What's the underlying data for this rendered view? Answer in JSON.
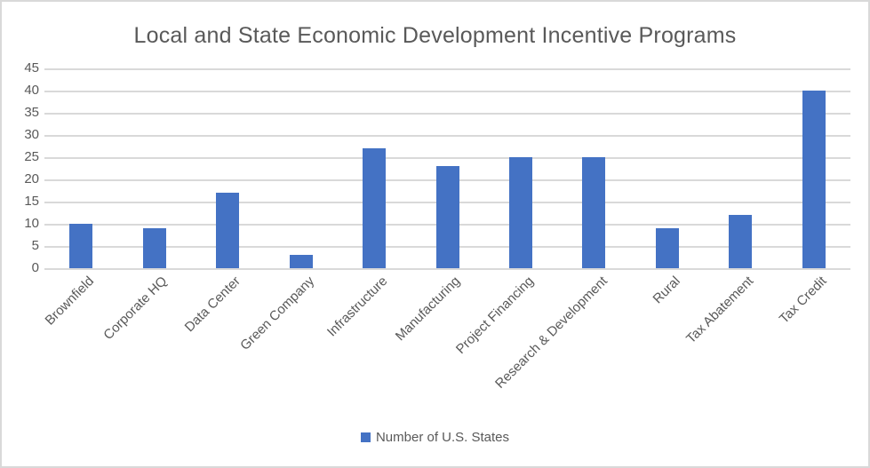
{
  "chart": {
    "title": "Local and State Economic Development Incentive Programs",
    "legend_label": "Number of U.S. States"
  },
  "chart_data": {
    "type": "bar",
    "title": "Local and State Economic Development Incentive Programs",
    "categories": [
      "Brownfield",
      "Corporate HQ",
      "Data Center",
      "Green Company",
      "Infrastructure",
      "Manufacturing",
      "Project Financing",
      "Research & Development",
      "Rural",
      "Tax Abatement",
      "Tax Credit"
    ],
    "series": [
      {
        "name": "Number of U.S. States",
        "values": [
          10,
          9,
          17,
          3,
          27,
          23,
          25,
          25,
          9,
          12,
          40
        ]
      }
    ],
    "xlabel": "",
    "ylabel": "",
    "ylim": [
      0,
      45
    ],
    "ytick_step": 5,
    "grid": true,
    "legend_position": "bottom",
    "colors": {
      "bar": "#4472C4",
      "gridline": "#D9D9D9",
      "text": "#595959",
      "frame_border": "#D9D9D9",
      "background": "#FFFFFF"
    }
  }
}
